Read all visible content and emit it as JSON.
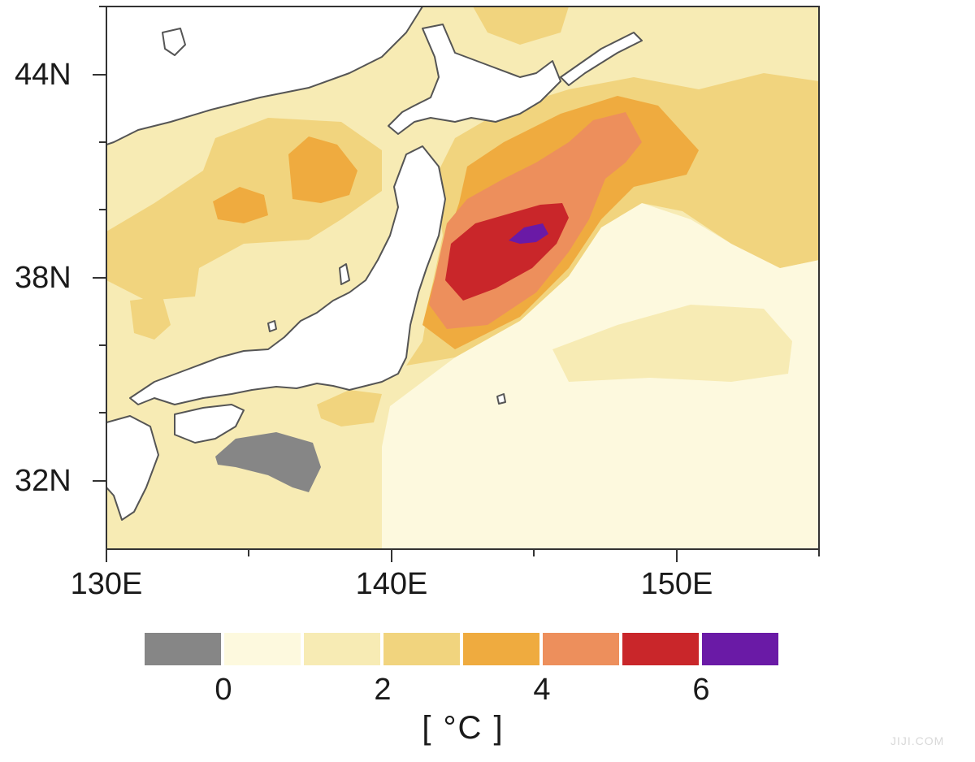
{
  "map": {
    "region": "Japan and northwest Pacific",
    "lat_ticks": [
      {
        "value": 44,
        "label": "44N"
      },
      {
        "value": 38,
        "label": "38N"
      },
      {
        "value": 32,
        "label": "32N"
      }
    ],
    "lon_ticks": [
      {
        "value": 130,
        "label": "130E"
      },
      {
        "value": 140,
        "label": "140E"
      },
      {
        "value": 150,
        "label": "150E"
      }
    ],
    "lon_range": [
      130,
      155
    ],
    "lat_range": [
      29.8,
      45.8
    ],
    "colors": {
      "below_zero": "#868686",
      "c0_1": "#fdf9de",
      "c1_2": "#f7ebb4",
      "c2_3": "#f1d47e",
      "c3_4": "#efab3f",
      "c4_5": "#ed8f5c",
      "c5_6": "#c9262a",
      "above_6": "#6a1aa6",
      "land": "#ffffff",
      "coast": "#555555"
    }
  },
  "colorbar": {
    "segment_colors": [
      "#868686",
      "#fdf9de",
      "#f7ebb4",
      "#f1d47e",
      "#efab3f",
      "#ed8f5c",
      "#c9262a",
      "#6a1aa6"
    ],
    "tick_labels": [
      "0",
      "2",
      "4",
      "6"
    ],
    "unit": "[ °C ]"
  },
  "watermark": "JIJI.COM"
}
